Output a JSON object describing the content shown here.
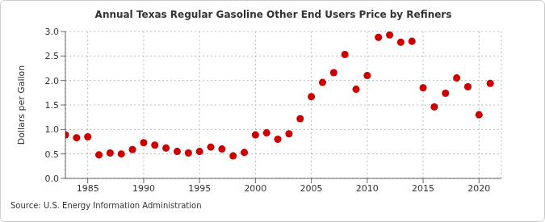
{
  "chart_data": {
    "type": "scatter",
    "title": "Annual Texas Regular Gasoline Other End Users Price by Refiners",
    "y_label": "Dollars per Gallon",
    "source": "Source: U.S. Energy Information Administration",
    "x": [
      1983,
      1984,
      1985,
      1986,
      1987,
      1988,
      1989,
      1990,
      1991,
      1992,
      1993,
      1994,
      1995,
      1996,
      1997,
      1998,
      1999,
      2000,
      2001,
      2002,
      2003,
      2004,
      2005,
      2006,
      2007,
      2008,
      2009,
      2010,
      2011,
      2012,
      2013,
      2014,
      2015,
      2016,
      2017,
      2018,
      2019,
      2020,
      2021
    ],
    "values": [
      0.89,
      0.83,
      0.85,
      0.48,
      0.52,
      0.5,
      0.59,
      0.73,
      0.68,
      0.62,
      0.55,
      0.52,
      0.55,
      0.64,
      0.6,
      0.46,
      0.53,
      0.89,
      0.93,
      0.8,
      0.91,
      1.22,
      1.67,
      1.96,
      2.16,
      2.53,
      1.82,
      2.1,
      2.88,
      2.93,
      2.78,
      2.8,
      1.85,
      1.46,
      1.74,
      2.05,
      1.87,
      1.3,
      1.94
    ],
    "color": "#cc0000",
    "marker": "circle",
    "xlim": [
      1983,
      2022
    ],
    "xticks": [
      1985,
      1990,
      1995,
      2000,
      2005,
      2010,
      2015,
      2020
    ],
    "ylim": [
      0,
      3
    ],
    "yticks": [
      {
        "value": 0,
        "label": "0.0"
      },
      {
        "value": 0.5,
        "label": "0.5"
      },
      {
        "value": 1,
        "label": "1.0"
      },
      {
        "value": 1.5,
        "label": "1.5"
      },
      {
        "value": 2,
        "label": "2.0"
      },
      {
        "value": 2.5,
        "label": "2.5"
      },
      {
        "value": 3,
        "label": "3.0"
      }
    ],
    "grid": true
  }
}
